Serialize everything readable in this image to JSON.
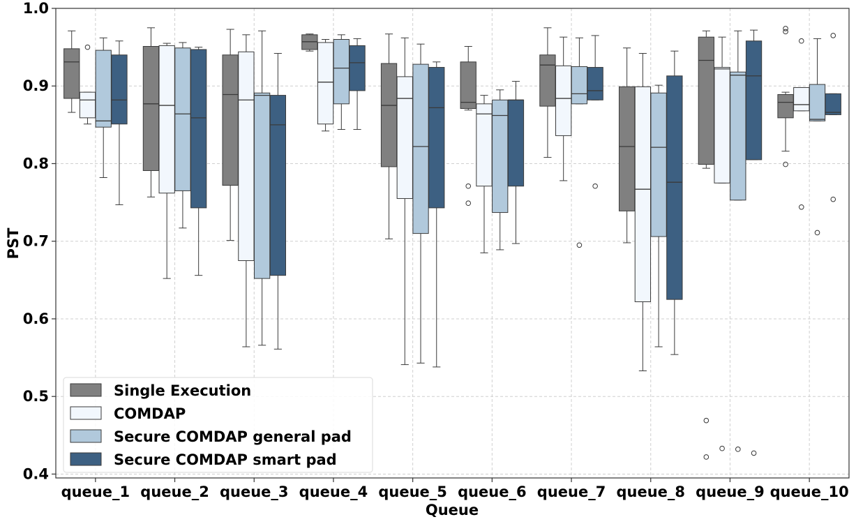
{
  "chart_data": {
    "type": "box",
    "title": "",
    "xlabel": "Queue",
    "ylabel": "PST",
    "ylim": [
      0.395,
      1.0
    ],
    "yticks": [
      0.4,
      0.5,
      0.6,
      0.7,
      0.8,
      0.9,
      1.0
    ],
    "ytick_labels": [
      "0.4",
      "0.5",
      "0.6",
      "0.7",
      "0.8",
      "0.9",
      "1.0"
    ],
    "grid": true,
    "legend_position": "bottom-left",
    "categories": [
      "queue_1",
      "queue_2",
      "queue_3",
      "queue_4",
      "queue_5",
      "queue_6",
      "queue_7",
      "queue_8",
      "queue_9",
      "queue_10"
    ],
    "series": [
      {
        "name": "Single Execution",
        "color": "#808080",
        "boxes": [
          {
            "whislo": 0.866,
            "q1": 0.884,
            "med": 0.931,
            "q3": 0.948,
            "whishi": 0.971,
            "fliers": []
          },
          {
            "whislo": 0.757,
            "q1": 0.791,
            "med": 0.877,
            "q3": 0.951,
            "whishi": 0.975,
            "fliers": []
          },
          {
            "whislo": 0.701,
            "q1": 0.772,
            "med": 0.889,
            "q3": 0.94,
            "whishi": 0.973,
            "fliers": []
          },
          {
            "whislo": 0.945,
            "q1": 0.947,
            "med": 0.957,
            "q3": 0.966,
            "whishi": 0.967,
            "fliers": []
          },
          {
            "whislo": 0.703,
            "q1": 0.796,
            "med": 0.875,
            "q3": 0.929,
            "whishi": 0.967,
            "fliers": []
          },
          {
            "whislo": 0.869,
            "q1": 0.871,
            "med": 0.879,
            "q3": 0.931,
            "whishi": 0.951,
            "fliers": [
              0.771,
              0.749
            ]
          },
          {
            "whislo": 0.808,
            "q1": 0.874,
            "med": 0.927,
            "q3": 0.94,
            "whishi": 0.975,
            "fliers": []
          },
          {
            "whislo": 0.698,
            "q1": 0.739,
            "med": 0.822,
            "q3": 0.899,
            "whishi": 0.949,
            "fliers": []
          },
          {
            "whislo": 0.794,
            "q1": 0.799,
            "med": 0.933,
            "q3": 0.963,
            "whishi": 0.971,
            "fliers": [
              0.469,
              0.422
            ]
          },
          {
            "whislo": 0.816,
            "q1": 0.859,
            "med": 0.879,
            "q3": 0.889,
            "whishi": 0.892,
            "fliers": [
              0.974,
              0.97,
              0.799
            ]
          }
        ]
      },
      {
        "name": "COMDAP",
        "color": "#f2f7fd",
        "boxes": [
          {
            "whislo": 0.851,
            "q1": 0.859,
            "med": 0.882,
            "q3": 0.892,
            "whishi": 0.892,
            "fliers": [
              0.95
            ]
          },
          {
            "whislo": 0.652,
            "q1": 0.762,
            "med": 0.875,
            "q3": 0.952,
            "whishi": 0.955,
            "fliers": []
          },
          {
            "whislo": 0.564,
            "q1": 0.675,
            "med": 0.882,
            "q3": 0.944,
            "whishi": 0.966,
            "fliers": []
          },
          {
            "whislo": 0.842,
            "q1": 0.851,
            "med": 0.905,
            "q3": 0.956,
            "whishi": 0.96,
            "fliers": []
          },
          {
            "whislo": 0.541,
            "q1": 0.755,
            "med": 0.884,
            "q3": 0.912,
            "whishi": 0.962,
            "fliers": []
          },
          {
            "whislo": 0.685,
            "q1": 0.771,
            "med": 0.864,
            "q3": 0.877,
            "whishi": 0.888,
            "fliers": []
          },
          {
            "whislo": 0.778,
            "q1": 0.836,
            "med": 0.884,
            "q3": 0.926,
            "whishi": 0.963,
            "fliers": []
          },
          {
            "whislo": 0.533,
            "q1": 0.622,
            "med": 0.767,
            "q3": 0.899,
            "whishi": 0.942,
            "fliers": []
          },
          {
            "whislo": 0.775,
            "q1": 0.775,
            "med": 0.922,
            "q3": 0.924,
            "whishi": 0.963,
            "fliers": [
              0.433
            ]
          },
          {
            "whislo": 0.868,
            "q1": 0.868,
            "med": 0.876,
            "q3": 0.898,
            "whishi": 0.898,
            "fliers": [
              0.958,
              0.744
            ]
          }
        ]
      },
      {
        "name": "Secure COMDAP general pad",
        "color": "#b1c9dc",
        "boxes": [
          {
            "whislo": 0.782,
            "q1": 0.847,
            "med": 0.855,
            "q3": 0.946,
            "whishi": 0.962,
            "fliers": []
          },
          {
            "whislo": 0.717,
            "q1": 0.765,
            "med": 0.864,
            "q3": 0.949,
            "whishi": 0.956,
            "fliers": []
          },
          {
            "whislo": 0.566,
            "q1": 0.652,
            "med": 0.888,
            "q3": 0.891,
            "whishi": 0.971,
            "fliers": []
          },
          {
            "whislo": 0.844,
            "q1": 0.877,
            "med": 0.923,
            "q3": 0.96,
            "whishi": 0.966,
            "fliers": []
          },
          {
            "whislo": 0.543,
            "q1": 0.71,
            "med": 0.822,
            "q3": 0.928,
            "whishi": 0.954,
            "fliers": []
          },
          {
            "whislo": 0.689,
            "q1": 0.737,
            "med": 0.862,
            "q3": 0.882,
            "whishi": 0.895,
            "fliers": []
          },
          {
            "whislo": 0.877,
            "q1": 0.877,
            "med": 0.89,
            "q3": 0.925,
            "whishi": 0.962,
            "fliers": [
              0.695
            ]
          },
          {
            "whislo": 0.564,
            "q1": 0.706,
            "med": 0.821,
            "q3": 0.891,
            "whishi": 0.901,
            "fliers": []
          },
          {
            "whislo": 0.753,
            "q1": 0.753,
            "med": 0.914,
            "q3": 0.918,
            "whishi": 0.971,
            "fliers": [
              0.432
            ]
          },
          {
            "whislo": 0.855,
            "q1": 0.855,
            "med": 0.857,
            "q3": 0.902,
            "whishi": 0.961,
            "fliers": [
              0.711
            ]
          }
        ]
      },
      {
        "name": "Secure COMDAP smart pad",
        "color": "#3d6082",
        "boxes": [
          {
            "whislo": 0.747,
            "q1": 0.851,
            "med": 0.882,
            "q3": 0.94,
            "whishi": 0.958,
            "fliers": []
          },
          {
            "whislo": 0.656,
            "q1": 0.743,
            "med": 0.859,
            "q3": 0.947,
            "whishi": 0.95,
            "fliers": []
          },
          {
            "whislo": 0.561,
            "q1": 0.656,
            "med": 0.85,
            "q3": 0.888,
            "whishi": 0.942,
            "fliers": []
          },
          {
            "whislo": 0.844,
            "q1": 0.894,
            "med": 0.93,
            "q3": 0.952,
            "whishi": 0.961,
            "fliers": []
          },
          {
            "whislo": 0.538,
            "q1": 0.743,
            "med": 0.872,
            "q3": 0.924,
            "whishi": 0.931,
            "fliers": []
          },
          {
            "whislo": 0.697,
            "q1": 0.771,
            "med": 0.882,
            "q3": 0.882,
            "whishi": 0.906,
            "fliers": []
          },
          {
            "whislo": 0.882,
            "q1": 0.882,
            "med": 0.894,
            "q3": 0.924,
            "whishi": 0.965,
            "fliers": [
              0.771
            ]
          },
          {
            "whislo": 0.554,
            "q1": 0.625,
            "med": 0.776,
            "q3": 0.913,
            "whishi": 0.945,
            "fliers": []
          },
          {
            "whislo": 0.805,
            "q1": 0.805,
            "med": 0.913,
            "q3": 0.958,
            "whishi": 0.972,
            "fliers": [
              0.427
            ]
          },
          {
            "whislo": 0.863,
            "q1": 0.863,
            "med": 0.866,
            "q3": 0.89,
            "whishi": 0.89,
            "fliers": [
              0.965,
              0.754
            ]
          }
        ]
      }
    ]
  }
}
